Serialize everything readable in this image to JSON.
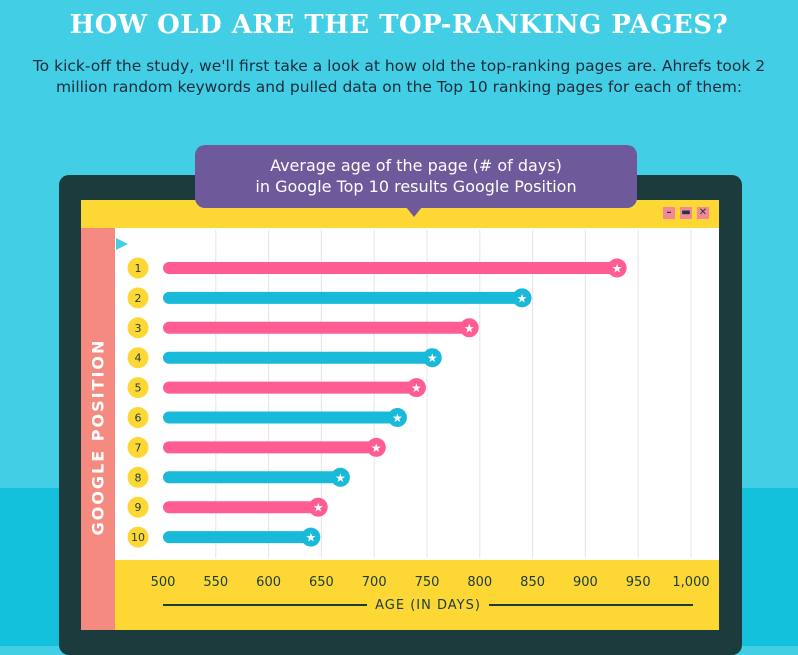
{
  "page": {
    "title": "HOW OLD ARE THE TOP-RANKING PAGES?",
    "intro": "To kick-off the study, we'll first take a look at how old the top-ranking pages are. Ahrefs took 2 million random keywords and pulled data on the Top 10 ranking pages for each of them:",
    "window_buttons": [
      "–",
      "▬",
      "✕"
    ]
  },
  "chart_data": {
    "type": "bar",
    "title": "Average age of the page (# of days) in Google Top 10 results Google Position",
    "title_lines": [
      "Average age of the page (# of days)",
      "in Google Top 10 results Google Position"
    ],
    "xlabel": "AGE (IN DAYS)",
    "ylabel": "GOOGLE POSITION",
    "categories": [
      "1",
      "2",
      "3",
      "4",
      "5",
      "6",
      "7",
      "8",
      "9",
      "10"
    ],
    "values": [
      930,
      840,
      790,
      755,
      740,
      722,
      702,
      668,
      647,
      640
    ],
    "xlim": [
      500,
      1000
    ],
    "xticks": [
      500,
      550,
      600,
      650,
      700,
      750,
      800,
      850,
      900,
      950,
      1000
    ],
    "xtick_labels": [
      "500",
      "550",
      "600",
      "650",
      "700",
      "750",
      "800",
      "850",
      "900",
      "950",
      "1,000"
    ],
    "grid": true,
    "colors": {
      "pink": "#ff5c93",
      "blue": "#19b9da",
      "badge": "#fdd835",
      "grid": "#e4e4e4"
    }
  }
}
